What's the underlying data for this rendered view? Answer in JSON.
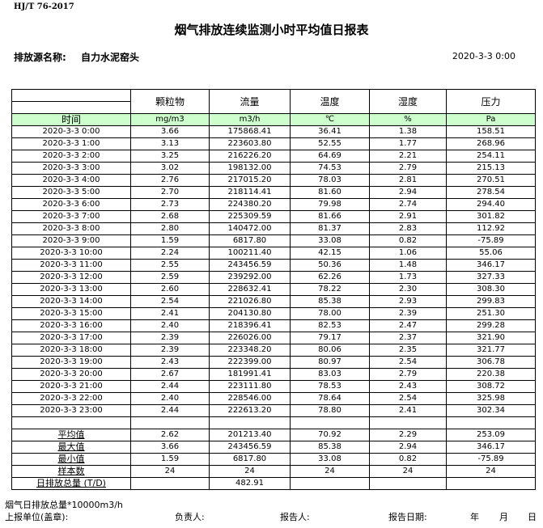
{
  "standard": "HJ/T  76-2017",
  "title": "烟气排放连续监测小时平均值日报表",
  "source_label": "排放源名称:",
  "source_name": "自力水泥窑头",
  "report_datetime": "2020-3-3 0:00",
  "columns": [
    "颗粒物",
    "流量",
    "温度",
    "湿度",
    "压力"
  ],
  "time_header": "时间",
  "units": [
    "mg/m3",
    "m3/h",
    "℃",
    "%",
    "Pa"
  ],
  "rows": [
    [
      "2020-3-3 0:00",
      "3.66",
      "175868.41",
      "36.41",
      "1.38",
      "158.51"
    ],
    [
      "2020-3-3 1:00",
      "3.13",
      "223603.80",
      "52.55",
      "1.77",
      "268.96"
    ],
    [
      "2020-3-3 2:00",
      "3.25",
      "216226.20",
      "64.69",
      "2.21",
      "254.11"
    ],
    [
      "2020-3-3 3:00",
      "3.02",
      "198132.00",
      "74.53",
      "2.79",
      "215.13"
    ],
    [
      "2020-3-3 4:00",
      "2.76",
      "217015.20",
      "78.03",
      "2.81",
      "270.51"
    ],
    [
      "2020-3-3 5:00",
      "2.70",
      "218114.41",
      "81.60",
      "2.94",
      "278.54"
    ],
    [
      "2020-3-3 6:00",
      "2.73",
      "224380.20",
      "79.98",
      "2.74",
      "294.40"
    ],
    [
      "2020-3-3 7:00",
      "2.68",
      "225309.59",
      "81.66",
      "2.91",
      "301.82"
    ],
    [
      "2020-3-3 8:00",
      "2.80",
      "140472.00",
      "81.37",
      "2.83",
      "112.92"
    ],
    [
      "2020-3-3 9:00",
      "1.59",
      "6817.80",
      "33.08",
      "0.82",
      "-75.89"
    ],
    [
      "2020-3-3 10:00",
      "2.24",
      "100211.40",
      "42.15",
      "1.06",
      "55.06"
    ],
    [
      "2020-3-3 11:00",
      "2.55",
      "243456.59",
      "50.36",
      "1.48",
      "346.17"
    ],
    [
      "2020-3-3 12:00",
      "2.59",
      "239292.00",
      "62.26",
      "1.73",
      "327.33"
    ],
    [
      "2020-3-3 13:00",
      "2.60",
      "228632.41",
      "78.22",
      "2.30",
      "308.30"
    ],
    [
      "2020-3-3 14:00",
      "2.54",
      "221026.80",
      "85.38",
      "2.93",
      "299.83"
    ],
    [
      "2020-3-3 15:00",
      "2.41",
      "204130.80",
      "78.00",
      "2.39",
      "251.30"
    ],
    [
      "2020-3-3 16:00",
      "2.40",
      "218396.41",
      "82.53",
      "2.47",
      "299.28"
    ],
    [
      "2020-3-3 17:00",
      "2.39",
      "226026.00",
      "79.17",
      "2.37",
      "321.90"
    ],
    [
      "2020-3-3 18:00",
      "2.39",
      "223348.20",
      "80.06",
      "2.35",
      "321.77"
    ],
    [
      "2020-3-3 19:00",
      "2.43",
      "222399.00",
      "80.97",
      "2.54",
      "306.78"
    ],
    [
      "2020-3-3 20:00",
      "2.67",
      "181991.41",
      "83.03",
      "2.79",
      "220.38"
    ],
    [
      "2020-3-3 21:00",
      "2.44",
      "223111.80",
      "78.53",
      "2.43",
      "308.72"
    ],
    [
      "2020-3-3 22:00",
      "2.40",
      "228546.00",
      "78.64",
      "2.54",
      "325.98"
    ],
    [
      "2020-3-3 23:00",
      "2.44",
      "222613.20",
      "78.80",
      "2.41",
      "302.34"
    ]
  ],
  "summary": [
    [
      "平均值",
      "2.62",
      "201213.40",
      "70.92",
      "2.29",
      "253.09"
    ],
    [
      "最大值",
      "3.66",
      "243456.59",
      "85.38",
      "2.94",
      "346.17"
    ],
    [
      "最小值",
      "1.59",
      "6817.80",
      "33.08",
      "0.82",
      "-75.89"
    ],
    [
      "样本数",
      "24",
      "24",
      "24",
      "24",
      "24"
    ],
    [
      "日排放总量 (T/D)",
      "",
      "482.91",
      "",
      "",
      ""
    ]
  ],
  "footer": {
    "note": "烟气日排放总量*10000m3/h",
    "unit_label": "上报单位(盖章):",
    "manager_label": "负责人:",
    "reporter_label": "报告人:",
    "date_label": "报告日期:",
    "year": "年",
    "month": "月",
    "day": "日"
  }
}
